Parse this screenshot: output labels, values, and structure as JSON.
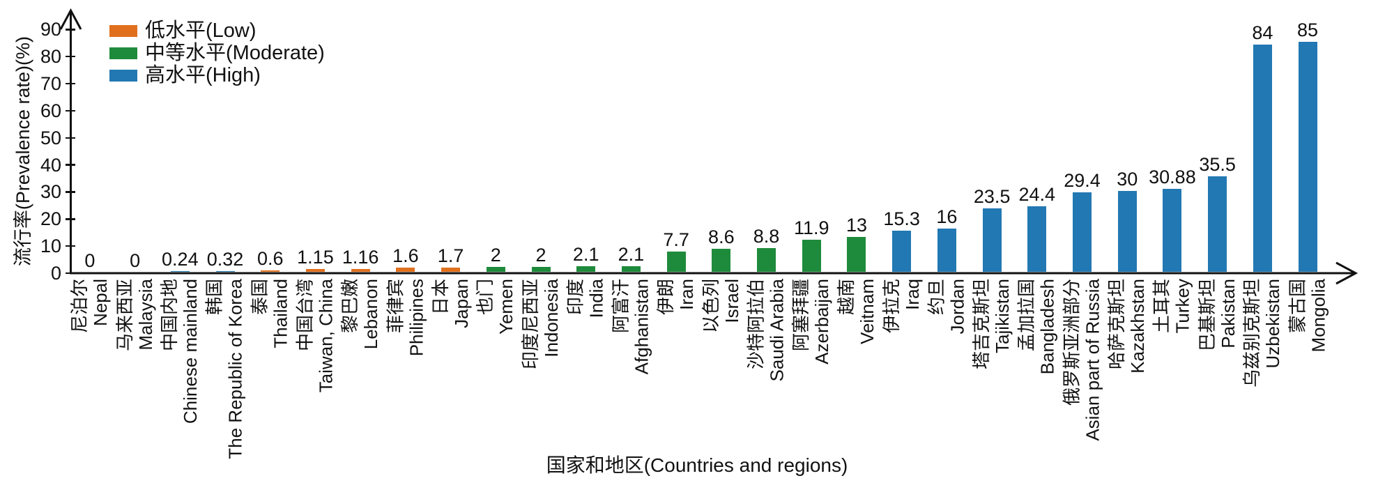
{
  "chart_data": {
    "type": "bar",
    "xlabel": "国家和地区(Countries and regions)",
    "ylabel": "流行率(Prevalence rate)(%)",
    "ylim": [
      0,
      93
    ],
    "yticks": [
      0,
      10,
      20,
      30,
      40,
      50,
      60,
      70,
      80,
      90
    ],
    "grid": false,
    "legend_position": "top-left",
    "legend": [
      {
        "label": "低水平(Low)",
        "level": "low",
        "color": "#e0701e"
      },
      {
        "label": "中等水平(Moderate)",
        "level": "moderate",
        "color": "#1e8b3c"
      },
      {
        "label": "高水平(High)",
        "level": "high",
        "color": "#2278b2"
      }
    ],
    "categories": [
      {
        "zh": "尼泊尔",
        "en": "Nepal",
        "value": 0,
        "display": "0",
        "level": null
      },
      {
        "zh": "马来西亚",
        "en": "Malaysia",
        "value": 0,
        "display": "0",
        "level": null
      },
      {
        "zh": "中国内地",
        "en": "Chinese mainland",
        "value": 0.24,
        "display": "0.24",
        "level": "high"
      },
      {
        "zh": "韩国",
        "en": "The Republic of Korea",
        "value": 0.32,
        "display": "0.32",
        "level": "high"
      },
      {
        "zh": "泰国",
        "en": "Thailand",
        "value": 0.6,
        "display": "0.6",
        "level": "low"
      },
      {
        "zh": "中国台湾",
        "en": "Taiwan, China",
        "value": 1.15,
        "display": "1.15",
        "level": "low"
      },
      {
        "zh": "黎巴嫩",
        "en": "Lebanon",
        "value": 1.16,
        "display": "1.16",
        "level": "low"
      },
      {
        "zh": "菲律宾",
        "en": "Philipines",
        "value": 1.6,
        "display": "1.6",
        "level": "low"
      },
      {
        "zh": "日本",
        "en": "Japan",
        "value": 1.7,
        "display": "1.7",
        "level": "low"
      },
      {
        "zh": "也门",
        "en": "Yemen",
        "value": 2,
        "display": "2",
        "level": "moderate"
      },
      {
        "zh": "印度尼西亚",
        "en": "Indonesia",
        "value": 2,
        "display": "2",
        "level": "moderate"
      },
      {
        "zh": "印度",
        "en": "India",
        "value": 2.1,
        "display": "2.1",
        "level": "moderate"
      },
      {
        "zh": "阿富汗",
        "en": "Afghanistan",
        "value": 2.1,
        "display": "2.1",
        "level": "moderate"
      },
      {
        "zh": "伊朗",
        "en": "Iran",
        "value": 7.7,
        "display": "7.7",
        "level": "moderate"
      },
      {
        "zh": "以色列",
        "en": "Israel",
        "value": 8.6,
        "display": "8.6",
        "level": "moderate"
      },
      {
        "zh": "沙特阿拉伯",
        "en": "Saudi Arabia",
        "value": 8.8,
        "display": "8.8",
        "level": "moderate"
      },
      {
        "zh": "阿塞拜疆",
        "en": "Azerbaijan",
        "value": 11.9,
        "display": "11.9",
        "level": "moderate"
      },
      {
        "zh": "越南",
        "en": "Veitnam",
        "value": 13,
        "display": "13",
        "level": "moderate"
      },
      {
        "zh": "伊拉克",
        "en": "Iraq",
        "value": 15.3,
        "display": "15.3",
        "level": "high"
      },
      {
        "zh": "约旦",
        "en": "Jordan",
        "value": 16,
        "display": "16",
        "level": "high"
      },
      {
        "zh": "塔吉克斯坦",
        "en": "Tajikistan",
        "value": 23.5,
        "display": "23.5",
        "level": "high"
      },
      {
        "zh": "孟加拉国",
        "en": "Bangladesh",
        "value": 24.4,
        "display": "24.4",
        "level": "high"
      },
      {
        "zh": "俄罗斯亚洲部分",
        "en": "Asian part of Russia",
        "value": 29.4,
        "display": "29.4",
        "level": "high"
      },
      {
        "zh": "哈萨克斯坦",
        "en": "Kazakhstan",
        "value": 30,
        "display": "30",
        "level": "high"
      },
      {
        "zh": "土耳其",
        "en": "Turkey",
        "value": 30.88,
        "display": "30.88",
        "level": "high"
      },
      {
        "zh": "巴基斯坦",
        "en": "Pakistan",
        "value": 35.5,
        "display": "35.5",
        "level": "high"
      },
      {
        "zh": "乌兹别克斯坦",
        "en": "Uzbekistan",
        "value": 84,
        "display": "84",
        "level": "high"
      },
      {
        "zh": "蒙古国",
        "en": "Mongolia",
        "value": 85,
        "display": "85",
        "level": "high"
      }
    ]
  }
}
